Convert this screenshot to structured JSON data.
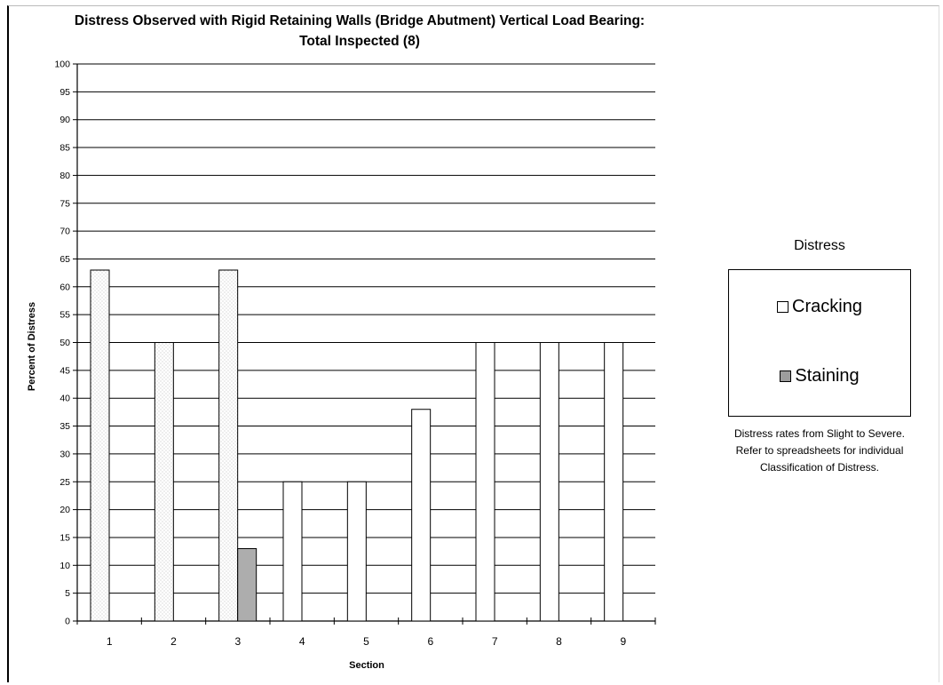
{
  "chart_data": {
    "type": "bar",
    "title_line1": "Distress Observed with Rigid Retaining Walls (Bridge Abutment) Vertical Load Bearing:",
    "title_line2": "Total Inspected (8)",
    "xlabel": "Section",
    "ylabel": "Percent of Distress",
    "ylim": [
      0,
      100
    ],
    "ytick_step": 5,
    "categories": [
      "1",
      "2",
      "3",
      "4",
      "5",
      "6",
      "7",
      "8",
      "9"
    ],
    "series": [
      {
        "name": "Cracking",
        "values": [
          63,
          50,
          63,
          25,
          25,
          38,
          50,
          50,
          50
        ],
        "color": "#ffffff"
      },
      {
        "name": "Staining",
        "values": [
          0,
          0,
          13,
          0,
          0,
          0,
          0,
          0,
          0
        ],
        "color": "#b8b8b8"
      }
    ],
    "grid": true,
    "legend_title": "Distress",
    "legend_position": "right",
    "note_lines": [
      "Distress rates from Slight to Severe.",
      "Refer to spreadsheets for individual",
      "Classification of Distress."
    ]
  }
}
